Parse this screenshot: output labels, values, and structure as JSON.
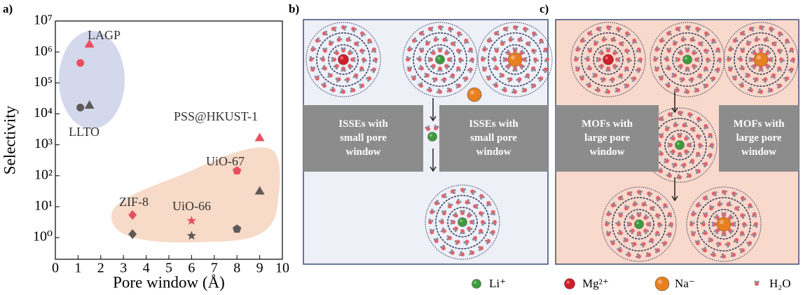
{
  "chart_data": {
    "type": "scatter",
    "panel_label": "a)",
    "x_label": "Pore window (Å)",
    "y_label": "Selectivity",
    "log_y": true,
    "xlim": [
      0,
      10
    ],
    "xticks": [
      0,
      1,
      2,
      3,
      4,
      5,
      6,
      7,
      8,
      9,
      10
    ],
    "ylim": [
      0.2,
      10000000
    ],
    "yticks": [
      {
        "value": 1,
        "label": "10⁰"
      },
      {
        "value": 10,
        "label": "10¹"
      },
      {
        "value": 100,
        "label": "10²"
      },
      {
        "value": 1000,
        "label": "10³"
      },
      {
        "value": 10000,
        "label": "10⁴"
      },
      {
        "value": 100000,
        "label": "10⁵"
      },
      {
        "value": 1000000,
        "label": "10⁶"
      },
      {
        "value": 10000000,
        "label": "10⁷"
      }
    ],
    "series": [
      {
        "color": "#e8505f",
        "markers": [
          "circle",
          "triangle",
          "diamond",
          "star",
          "pentagon",
          "triangle"
        ],
        "x": [
          1.1,
          1.5,
          3.4,
          6,
          8,
          9
        ],
        "values": [
          440000,
          1800000,
          5.4,
          3.5,
          145,
          1700
        ]
      },
      {
        "color": "#5f5a5a",
        "markers": [
          "circle",
          "triangle",
          "diamond",
          "star",
          "pentagon",
          "triangle"
        ],
        "x": [
          1.1,
          1.5,
          3.4,
          6,
          8,
          9
        ],
        "values": [
          16000,
          19000,
          1.3,
          1.15,
          1.9,
          32
        ]
      }
    ],
    "annotations": [
      "LAGP",
      "LLTO",
      "PSS@HKUST-1",
      "UiO-67",
      "ZIF-8",
      "UiO-66"
    ]
  },
  "panel_b": {
    "label": "b)",
    "boxes": [
      {
        "lines": [
          "ISSEs with",
          "small pore",
          "window"
        ]
      },
      {
        "lines": [
          "ISSEs with",
          "small pore",
          "window"
        ]
      }
    ]
  },
  "panel_c": {
    "label": "c)",
    "boxes": [
      {
        "lines": [
          "MOFs with",
          "large pore",
          "window"
        ]
      },
      {
        "lines": [
          "MOFs with",
          "large pore",
          "window"
        ]
      }
    ]
  },
  "legend": [
    "Li⁺",
    "Mg²⁺",
    "Na⁻",
    "H₂O"
  ]
}
